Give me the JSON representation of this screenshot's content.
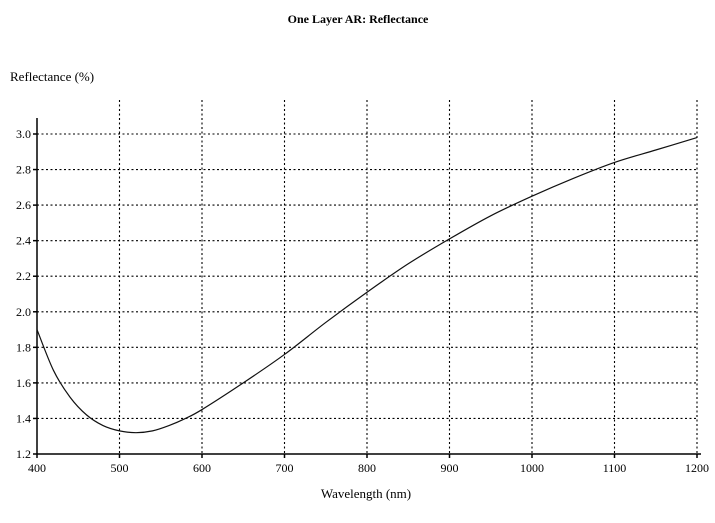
{
  "chart_data": {
    "type": "line",
    "title": "One Layer AR: Reflectance",
    "ylabel": "Reflectance (%)",
    "xlabel": "Wavelength (nm)",
    "xlim": [
      400,
      1200
    ],
    "ylim": [
      1.2,
      3.0
    ],
    "xticks": [
      "400",
      "500",
      "600",
      "700",
      "800",
      "900",
      "1000",
      "1100",
      "1200"
    ],
    "yticks": [
      "1.2",
      "1.4",
      "1.6",
      "1.8",
      "2.0",
      "2.2",
      "2.4",
      "2.6",
      "2.8",
      "3.0"
    ],
    "grid": true,
    "series": [
      {
        "name": "Reflectance",
        "x": [
          400,
          420,
          440,
          460,
          480,
          500,
          520,
          540,
          560,
          580,
          600,
          650,
          700,
          750,
          800,
          850,
          900,
          950,
          1000,
          1050,
          1100,
          1150,
          1200
        ],
        "y": [
          1.9,
          1.67,
          1.52,
          1.42,
          1.36,
          1.33,
          1.32,
          1.33,
          1.36,
          1.4,
          1.45,
          1.6,
          1.76,
          1.94,
          2.11,
          2.27,
          2.41,
          2.54,
          2.65,
          2.75,
          2.84,
          2.91,
          2.98
        ]
      }
    ]
  }
}
